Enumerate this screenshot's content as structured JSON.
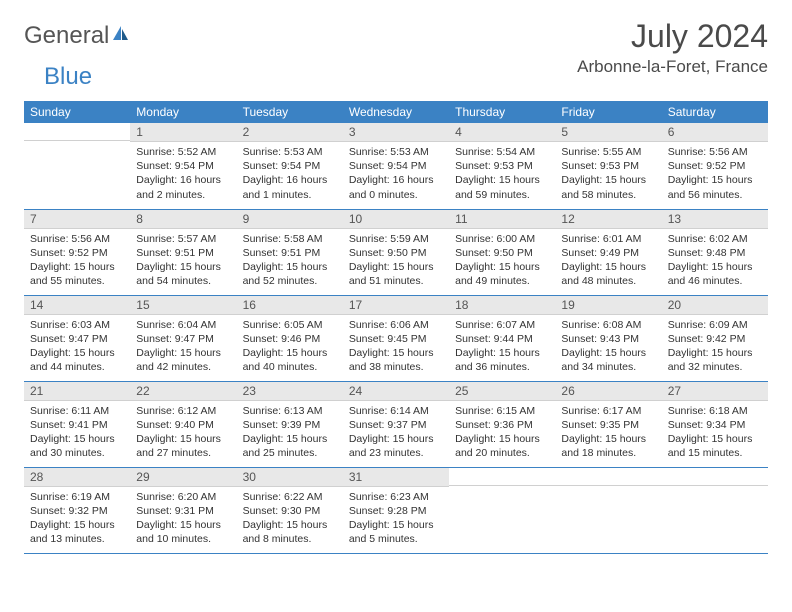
{
  "brand": {
    "general": "General",
    "blue": "Blue"
  },
  "title": "July 2024",
  "location": "Arbonne-la-Foret, France",
  "colors": {
    "header_bg": "#3b82c4",
    "header_text": "#ffffff",
    "daynum_bg": "#e8e8e8",
    "border": "#3b82c4",
    "text": "#333333",
    "logo_blue": "#3b82c4",
    "logo_gray": "#555555"
  },
  "day_labels": [
    "Sunday",
    "Monday",
    "Tuesday",
    "Wednesday",
    "Thursday",
    "Friday",
    "Saturday"
  ],
  "weeks": [
    [
      null,
      {
        "n": "1",
        "sunrise": "5:52 AM",
        "sunset": "9:54 PM",
        "daylight": "16 hours and 2 minutes."
      },
      {
        "n": "2",
        "sunrise": "5:53 AM",
        "sunset": "9:54 PM",
        "daylight": "16 hours and 1 minutes."
      },
      {
        "n": "3",
        "sunrise": "5:53 AM",
        "sunset": "9:54 PM",
        "daylight": "16 hours and 0 minutes."
      },
      {
        "n": "4",
        "sunrise": "5:54 AM",
        "sunset": "9:53 PM",
        "daylight": "15 hours and 59 minutes."
      },
      {
        "n": "5",
        "sunrise": "5:55 AM",
        "sunset": "9:53 PM",
        "daylight": "15 hours and 58 minutes."
      },
      {
        "n": "6",
        "sunrise": "5:56 AM",
        "sunset": "9:52 PM",
        "daylight": "15 hours and 56 minutes."
      }
    ],
    [
      {
        "n": "7",
        "sunrise": "5:56 AM",
        "sunset": "9:52 PM",
        "daylight": "15 hours and 55 minutes."
      },
      {
        "n": "8",
        "sunrise": "5:57 AM",
        "sunset": "9:51 PM",
        "daylight": "15 hours and 54 minutes."
      },
      {
        "n": "9",
        "sunrise": "5:58 AM",
        "sunset": "9:51 PM",
        "daylight": "15 hours and 52 minutes."
      },
      {
        "n": "10",
        "sunrise": "5:59 AM",
        "sunset": "9:50 PM",
        "daylight": "15 hours and 51 minutes."
      },
      {
        "n": "11",
        "sunrise": "6:00 AM",
        "sunset": "9:50 PM",
        "daylight": "15 hours and 49 minutes."
      },
      {
        "n": "12",
        "sunrise": "6:01 AM",
        "sunset": "9:49 PM",
        "daylight": "15 hours and 48 minutes."
      },
      {
        "n": "13",
        "sunrise": "6:02 AM",
        "sunset": "9:48 PM",
        "daylight": "15 hours and 46 minutes."
      }
    ],
    [
      {
        "n": "14",
        "sunrise": "6:03 AM",
        "sunset": "9:47 PM",
        "daylight": "15 hours and 44 minutes."
      },
      {
        "n": "15",
        "sunrise": "6:04 AM",
        "sunset": "9:47 PM",
        "daylight": "15 hours and 42 minutes."
      },
      {
        "n": "16",
        "sunrise": "6:05 AM",
        "sunset": "9:46 PM",
        "daylight": "15 hours and 40 minutes."
      },
      {
        "n": "17",
        "sunrise": "6:06 AM",
        "sunset": "9:45 PM",
        "daylight": "15 hours and 38 minutes."
      },
      {
        "n": "18",
        "sunrise": "6:07 AM",
        "sunset": "9:44 PM",
        "daylight": "15 hours and 36 minutes."
      },
      {
        "n": "19",
        "sunrise": "6:08 AM",
        "sunset": "9:43 PM",
        "daylight": "15 hours and 34 minutes."
      },
      {
        "n": "20",
        "sunrise": "6:09 AM",
        "sunset": "9:42 PM",
        "daylight": "15 hours and 32 minutes."
      }
    ],
    [
      {
        "n": "21",
        "sunrise": "6:11 AM",
        "sunset": "9:41 PM",
        "daylight": "15 hours and 30 minutes."
      },
      {
        "n": "22",
        "sunrise": "6:12 AM",
        "sunset": "9:40 PM",
        "daylight": "15 hours and 27 minutes."
      },
      {
        "n": "23",
        "sunrise": "6:13 AM",
        "sunset": "9:39 PM",
        "daylight": "15 hours and 25 minutes."
      },
      {
        "n": "24",
        "sunrise": "6:14 AM",
        "sunset": "9:37 PM",
        "daylight": "15 hours and 23 minutes."
      },
      {
        "n": "25",
        "sunrise": "6:15 AM",
        "sunset": "9:36 PM",
        "daylight": "15 hours and 20 minutes."
      },
      {
        "n": "26",
        "sunrise": "6:17 AM",
        "sunset": "9:35 PM",
        "daylight": "15 hours and 18 minutes."
      },
      {
        "n": "27",
        "sunrise": "6:18 AM",
        "sunset": "9:34 PM",
        "daylight": "15 hours and 15 minutes."
      }
    ],
    [
      {
        "n": "28",
        "sunrise": "6:19 AM",
        "sunset": "9:32 PM",
        "daylight": "15 hours and 13 minutes."
      },
      {
        "n": "29",
        "sunrise": "6:20 AM",
        "sunset": "9:31 PM",
        "daylight": "15 hours and 10 minutes."
      },
      {
        "n": "30",
        "sunrise": "6:22 AM",
        "sunset": "9:30 PM",
        "daylight": "15 hours and 8 minutes."
      },
      {
        "n": "31",
        "sunrise": "6:23 AM",
        "sunset": "9:28 PM",
        "daylight": "15 hours and 5 minutes."
      },
      null,
      null,
      null
    ]
  ],
  "labels": {
    "sunrise": "Sunrise:",
    "sunset": "Sunset:",
    "daylight": "Daylight:"
  }
}
